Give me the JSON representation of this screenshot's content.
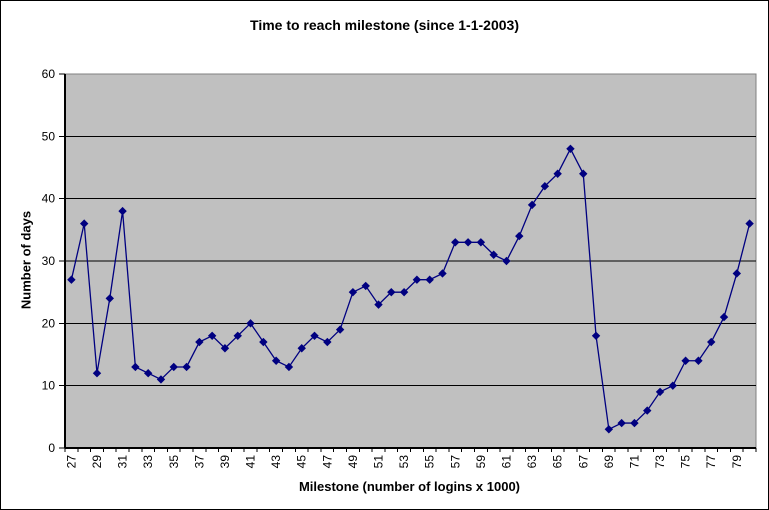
{
  "chart_data": {
    "type": "line",
    "title": "Time to reach milestone (since 1-1-2003)",
    "xlabel": "Milestone (number of logins x 1000)",
    "ylabel": "Number of days",
    "x": [
      27,
      28,
      29,
      30,
      31,
      32,
      33,
      34,
      35,
      36,
      37,
      38,
      39,
      40,
      41,
      42,
      43,
      44,
      45,
      46,
      47,
      48,
      49,
      50,
      51,
      52,
      53,
      54,
      55,
      56,
      57,
      58,
      59,
      60,
      61,
      62,
      63,
      64,
      65,
      66,
      67,
      68,
      69,
      70,
      71,
      72,
      73,
      74,
      75,
      76,
      77,
      78,
      79,
      80
    ],
    "values": [
      27,
      36,
      12,
      24,
      38,
      13,
      12,
      11,
      13,
      13,
      17,
      18,
      16,
      18,
      20,
      17,
      14,
      13,
      16,
      18,
      17,
      19,
      25,
      26,
      23,
      25,
      25,
      27,
      27,
      28,
      33,
      33,
      33,
      31,
      30,
      34,
      39,
      42,
      44,
      48,
      44,
      18,
      3,
      4,
      4,
      6,
      9,
      10,
      14,
      14,
      17,
      21,
      28,
      36
    ],
    "ylim": [
      0,
      60
    ],
    "y_ticks": [
      0,
      10,
      20,
      30,
      40,
      50,
      60
    ],
    "x_tick_labels": [
      27,
      29,
      31,
      33,
      35,
      37,
      39,
      41,
      43,
      45,
      47,
      49,
      51,
      53,
      55,
      57,
      59,
      61,
      63,
      65,
      67,
      69,
      71,
      73,
      75,
      77,
      79
    ],
    "grid": true,
    "legend": false,
    "marker": "diamond",
    "colors": {
      "series": "#000080",
      "plot_background": "#C0C0C0",
      "gridline": "#000000",
      "plot_border": "#808080",
      "axis_line": "#000000",
      "text": "#000000",
      "background": "#FFFFFF",
      "chart_border": "#000000"
    }
  }
}
